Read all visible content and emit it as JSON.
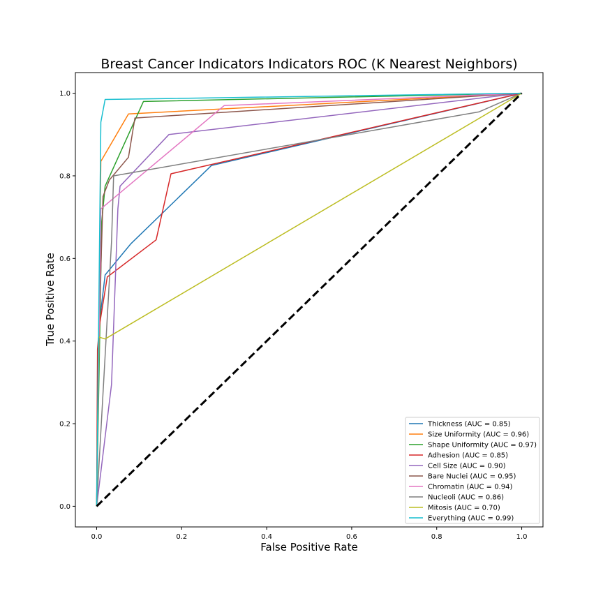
{
  "chart_data": {
    "type": "line",
    "title": "Breast Cancer Indicators Indicators ROC (K Nearest Neighbors)",
    "xlabel": "False Positive Rate",
    "ylabel": "True Positive Rate",
    "xlim": [
      -0.05,
      1.05
    ],
    "ylim": [
      -0.05,
      1.05
    ],
    "xticks": [
      0.0,
      0.2,
      0.4,
      0.6,
      0.8,
      1.0
    ],
    "yticks": [
      0.0,
      0.2,
      0.4,
      0.6,
      0.8,
      1.0
    ],
    "xtick_labels": [
      "0.0",
      "0.2",
      "0.4",
      "0.6",
      "0.8",
      "1.0"
    ],
    "ytick_labels": [
      "0.0",
      "0.2",
      "0.4",
      "0.6",
      "0.8",
      "1.0"
    ],
    "grid": false,
    "legend_position": "lower-right",
    "diagonal": {
      "x": [
        0,
        1
      ],
      "y": [
        0,
        1
      ],
      "style": "dashed",
      "color": "#000000"
    },
    "series": [
      {
        "name": "Thickness (AUC = 0.85)",
        "color": "#1f77b4",
        "x": [
          0,
          0.005,
          0.02,
          0.08,
          0.27,
          1.0
        ],
        "y": [
          0,
          0.43,
          0.56,
          0.635,
          0.825,
          1.0
        ]
      },
      {
        "name": "Size Uniformity (AUC = 0.96)",
        "color": "#ff7f0e",
        "x": [
          0,
          0.01,
          0.075,
          1.0
        ],
        "y": [
          0,
          0.835,
          0.95,
          1.0
        ]
      },
      {
        "name": "Shape Uniformity (AUC = 0.97)",
        "color": "#2ca02c",
        "x": [
          0,
          0.012,
          0.02,
          0.11,
          1.0
        ],
        "y": [
          0,
          0.69,
          0.775,
          0.98,
          1.0
        ]
      },
      {
        "name": "Adhesion (AUC = 0.85)",
        "color": "#d62728",
        "x": [
          0,
          0.002,
          0.007,
          0.025,
          0.14,
          0.175,
          1.0
        ],
        "y": [
          0,
          0.38,
          0.44,
          0.555,
          0.645,
          0.805,
          1.0
        ]
      },
      {
        "name": "Cell Size (AUC = 0.90)",
        "color": "#9467bd",
        "x": [
          0,
          0.035,
          0.05,
          0.055,
          0.17,
          1.0
        ],
        "y": [
          0,
          0.295,
          0.72,
          0.775,
          0.9,
          1.0
        ]
      },
      {
        "name": "Bare Nuclei (AUC = 0.95)",
        "color": "#8c564b",
        "x": [
          0,
          0.005,
          0.015,
          0.03,
          0.075,
          0.09,
          1.0
        ],
        "y": [
          0,
          0.4,
          0.75,
          0.79,
          0.845,
          0.94,
          1.0
        ]
      },
      {
        "name": "Chromatin (AUC = 0.94)",
        "color": "#e377c2",
        "x": [
          0,
          0.01,
          0.3,
          1.0
        ],
        "y": [
          0,
          0.72,
          0.97,
          1.0
        ]
      },
      {
        "name": "Nucleoli (AUC = 0.86)",
        "color": "#7f7f7f",
        "x": [
          0,
          0.035,
          0.04,
          0.9,
          1.0
        ],
        "y": [
          0,
          0.64,
          0.8,
          0.955,
          1.0
        ]
      },
      {
        "name": "Mitosis (AUC = 0.70)",
        "color": "#bcbd22",
        "x": [
          0,
          0.005,
          0.02,
          1.0
        ],
        "y": [
          0,
          0.41,
          0.405,
          1.0
        ]
      },
      {
        "name": "Everything (AUC = 0.99)",
        "color": "#17becf",
        "x": [
          0,
          0.01,
          0.02,
          1.0
        ],
        "y": [
          0,
          0.93,
          0.985,
          1.0
        ]
      }
    ]
  }
}
